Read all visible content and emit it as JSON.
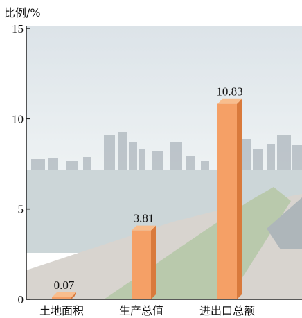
{
  "colors": {
    "bar_front": "#f5a066",
    "bar_side": "#d97a3c",
    "bar_top": "#f8bd8d",
    "axis": "#222222",
    "sky_top": "#cfd9e0",
    "sky_bottom": "#e8eef0",
    "water": "#b9c6c9",
    "bund_green": "#9eb58c",
    "promenade": "#c9c4bd"
  },
  "chart_data": {
    "type": "bar",
    "y_unit_label": "比例/%",
    "categories": [
      "土地面积",
      "生产总值",
      "进出口总额"
    ],
    "values": [
      0.07,
      3.81,
      10.83
    ],
    "value_labels": [
      "0.07",
      "3.81",
      "10.83"
    ],
    "ylim": [
      0,
      15
    ],
    "y_ticks": [
      0,
      5,
      10,
      15
    ],
    "y_tick_labels": [
      "0",
      "5",
      "10",
      "15"
    ],
    "grid": false,
    "background": "photo-city-waterfront",
    "bar_style": "3d"
  }
}
